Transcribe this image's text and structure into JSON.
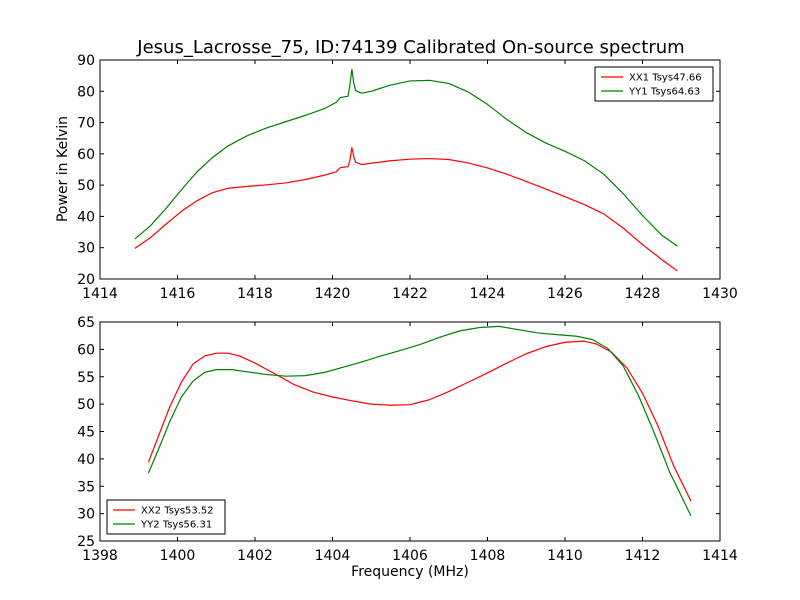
{
  "figure": {
    "title": "Jesus_Lacrosse_75, ID:74139 Calibrated On-source spectrum"
  },
  "colors": {
    "xx": "#ff0000",
    "yy": "#008000"
  },
  "chart_data": [
    {
      "type": "line",
      "ylabel": "Power in Kelvin",
      "xlabel": "",
      "xlim": [
        1414,
        1430
      ],
      "ylim": [
        20,
        90
      ],
      "xticks": [
        1414,
        1416,
        1418,
        1420,
        1422,
        1424,
        1426,
        1428,
        1430
      ],
      "yticks": [
        20,
        30,
        40,
        50,
        60,
        70,
        80,
        90
      ],
      "legend": "top-right",
      "series": [
        {
          "name": "XX1 Tsys47.66",
          "color": "#ff0000",
          "points": [
            [
              1414.9,
              29.8
            ],
            [
              1415.3,
              33.2
            ],
            [
              1415.7,
              37.5
            ],
            [
              1416.1,
              41.6
            ],
            [
              1416.5,
              45.0
            ],
            [
              1416.9,
              47.6
            ],
            [
              1417.3,
              49.0
            ],
            [
              1417.8,
              49.6
            ],
            [
              1418.3,
              50.1
            ],
            [
              1418.8,
              50.7
            ],
            [
              1419.3,
              51.8
            ],
            [
              1419.8,
              53.2
            ],
            [
              1420.1,
              54.3
            ],
            [
              1420.2,
              55.6
            ],
            [
              1420.4,
              55.9
            ],
            [
              1420.45,
              58.0
            ],
            [
              1420.5,
              62.0
            ],
            [
              1420.55,
              59.0
            ],
            [
              1420.6,
              57.3
            ],
            [
              1420.75,
              56.6
            ],
            [
              1421.0,
              57.0
            ],
            [
              1421.5,
              57.8
            ],
            [
              1422.0,
              58.3
            ],
            [
              1422.5,
              58.5
            ],
            [
              1423.0,
              58.2
            ],
            [
              1423.5,
              57.1
            ],
            [
              1424.0,
              55.5
            ],
            [
              1424.5,
              53.5
            ],
            [
              1425.0,
              51.2
            ],
            [
              1425.5,
              48.8
            ],
            [
              1426.0,
              46.3
            ],
            [
              1426.5,
              43.8
            ],
            [
              1427.0,
              40.8
            ],
            [
              1427.5,
              36.3
            ],
            [
              1428.0,
              31.0
            ],
            [
              1428.5,
              26.2
            ],
            [
              1428.9,
              22.6
            ]
          ]
        },
        {
          "name": "YY1 Tsys64.63",
          "color": "#008000",
          "points": [
            [
              1414.9,
              32.8
            ],
            [
              1415.3,
              37.0
            ],
            [
              1415.7,
              42.5
            ],
            [
              1416.1,
              48.5
            ],
            [
              1416.5,
              54.2
            ],
            [
              1416.9,
              58.8
            ],
            [
              1417.3,
              62.5
            ],
            [
              1417.8,
              65.8
            ],
            [
              1418.3,
              68.3
            ],
            [
              1418.8,
              70.3
            ],
            [
              1419.3,
              72.3
            ],
            [
              1419.8,
              74.5
            ],
            [
              1420.1,
              76.5
            ],
            [
              1420.2,
              78.0
            ],
            [
              1420.4,
              78.4
            ],
            [
              1420.45,
              82.0
            ],
            [
              1420.5,
              87.0
            ],
            [
              1420.55,
              82.5
            ],
            [
              1420.6,
              80.2
            ],
            [
              1420.75,
              79.4
            ],
            [
              1421.0,
              80.0
            ],
            [
              1421.5,
              82.0
            ],
            [
              1422.0,
              83.3
            ],
            [
              1422.5,
              83.5
            ],
            [
              1423.0,
              82.5
            ],
            [
              1423.5,
              79.8
            ],
            [
              1424.0,
              75.8
            ],
            [
              1424.5,
              71.0
            ],
            [
              1425.0,
              66.8
            ],
            [
              1425.5,
              63.5
            ],
            [
              1426.0,
              60.8
            ],
            [
              1426.5,
              57.8
            ],
            [
              1427.0,
              53.5
            ],
            [
              1427.5,
              47.3
            ],
            [
              1428.0,
              40.3
            ],
            [
              1428.5,
              34.0
            ],
            [
              1428.9,
              30.5
            ]
          ]
        }
      ]
    },
    {
      "type": "line",
      "ylabel": "",
      "xlabel": "Frequency (MHz)",
      "xlim": [
        1398,
        1414
      ],
      "ylim": [
        25,
        65
      ],
      "xticks": [
        1398,
        1400,
        1402,
        1404,
        1406,
        1408,
        1410,
        1412,
        1414
      ],
      "yticks": [
        25,
        30,
        35,
        40,
        45,
        50,
        55,
        60,
        65
      ],
      "legend": "bottom-left",
      "series": [
        {
          "name": "XX2 Tsys53.52",
          "color": "#ff0000",
          "points": [
            [
              1399.25,
              39.4
            ],
            [
              1399.5,
              44.0
            ],
            [
              1399.8,
              49.5
            ],
            [
              1400.1,
              54.0
            ],
            [
              1400.4,
              57.3
            ],
            [
              1400.7,
              58.8
            ],
            [
              1401.0,
              59.3
            ],
            [
              1401.3,
              59.3
            ],
            [
              1401.6,
              58.8
            ],
            [
              1402.0,
              57.5
            ],
            [
              1402.5,
              55.6
            ],
            [
              1403.0,
              53.6
            ],
            [
              1403.5,
              52.2
            ],
            [
              1404.0,
              51.3
            ],
            [
              1404.5,
              50.6
            ],
            [
              1405.0,
              50.0
            ],
            [
              1405.5,
              49.8
            ],
            [
              1406.0,
              49.9
            ],
            [
              1406.5,
              50.8
            ],
            [
              1407.0,
              52.3
            ],
            [
              1407.5,
              54.0
            ],
            [
              1408.0,
              55.7
            ],
            [
              1408.5,
              57.5
            ],
            [
              1409.0,
              59.2
            ],
            [
              1409.5,
              60.5
            ],
            [
              1410.0,
              61.3
            ],
            [
              1410.5,
              61.5
            ],
            [
              1410.8,
              61.0
            ],
            [
              1411.2,
              59.5
            ],
            [
              1411.6,
              56.6
            ],
            [
              1412.0,
              52.0
            ],
            [
              1412.4,
              46.0
            ],
            [
              1412.8,
              38.8
            ],
            [
              1413.25,
              32.3
            ]
          ]
        },
        {
          "name": "YY2 Tsys56.31",
          "color": "#008000",
          "points": [
            [
              1399.25,
              37.4
            ],
            [
              1399.5,
              41.6
            ],
            [
              1399.8,
              46.8
            ],
            [
              1400.1,
              51.3
            ],
            [
              1400.4,
              54.2
            ],
            [
              1400.7,
              55.8
            ],
            [
              1401.0,
              56.3
            ],
            [
              1401.4,
              56.3
            ],
            [
              1401.8,
              55.9
            ],
            [
              1402.3,
              55.4
            ],
            [
              1402.8,
              55.1
            ],
            [
              1403.3,
              55.2
            ],
            [
              1403.8,
              55.8
            ],
            [
              1404.3,
              56.8
            ],
            [
              1404.8,
              57.8
            ],
            [
              1405.3,
              58.9
            ],
            [
              1405.8,
              59.9
            ],
            [
              1406.3,
              61.0
            ],
            [
              1406.8,
              62.3
            ],
            [
              1407.3,
              63.4
            ],
            [
              1407.8,
              64.0
            ],
            [
              1408.3,
              64.2
            ],
            [
              1408.8,
              63.6
            ],
            [
              1409.3,
              63.0
            ],
            [
              1409.8,
              62.7
            ],
            [
              1410.3,
              62.4
            ],
            [
              1410.7,
              61.8
            ],
            [
              1411.1,
              60.2
            ],
            [
              1411.5,
              57.0
            ],
            [
              1411.9,
              51.5
            ],
            [
              1412.3,
              44.8
            ],
            [
              1412.7,
              37.6
            ],
            [
              1413.25,
              29.6
            ]
          ]
        }
      ]
    }
  ]
}
